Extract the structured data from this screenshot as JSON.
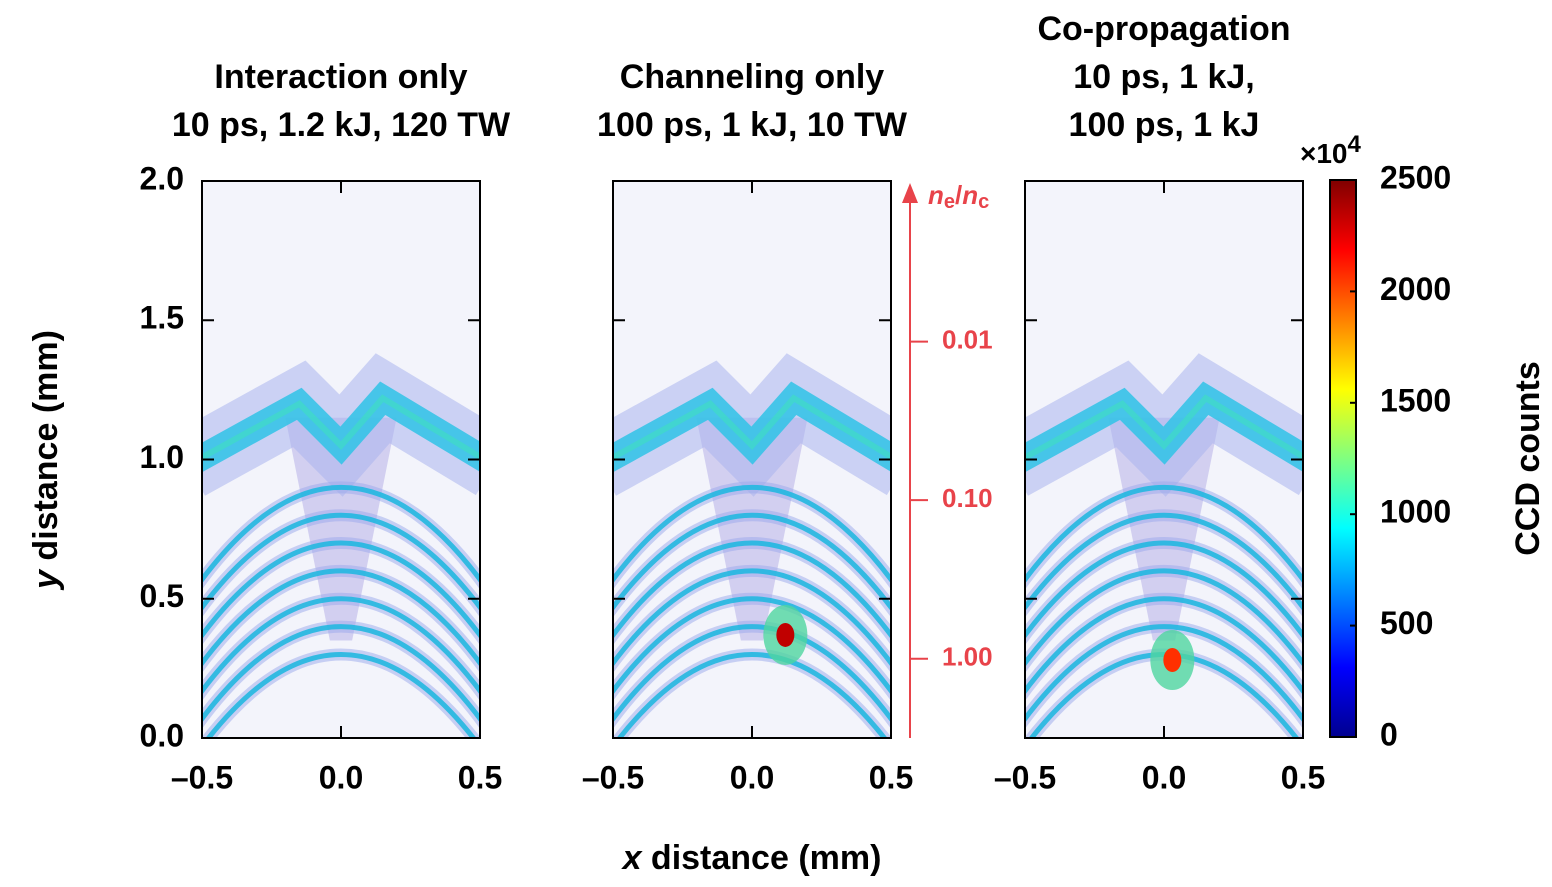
{
  "chart_data": [
    {
      "type": "heatmap",
      "title": [
        "Interaction only",
        "10 ps, 1.2 kJ, 120 TW"
      ],
      "ylabel": [
        "y",
        " distance (mm)"
      ],
      "xlim": [
        -0.5,
        0.5
      ],
      "xticks": [
        {
          "value": -0.5,
          "label": "–0.5"
        },
        {
          "value": 0,
          "label": "0.0"
        },
        0.5
      ],
      "ylim": [
        0,
        2
      ],
      "yticks": [
        {
          "value": 0,
          "label": "0.0"
        },
        0.5,
        {
          "value": 1,
          "label": "1.0"
        },
        1.5,
        {
          "value": 2,
          "label": "2.0"
        }
      ]
    },
    {
      "type": "heatmap",
      "title": [
        "Channeling only",
        "100 ps, 1 kJ, 10 TW"
      ],
      "xlabel": [
        "x",
        " distance (mm)"
      ],
      "xlim": [
        -0.5,
        0.5
      ],
      "xticks": [
        {
          "value": -0.5,
          "label": "–0.5"
        },
        {
          "value": 0,
          "label": "0.0"
        },
        0.5
      ],
      "ylim": [
        0,
        2
      ],
      "yticks": [
        0,
        0.5,
        1,
        1.5,
        2
      ]
    },
    {
      "type": "heatmap",
      "title": [
        "Co-propagation",
        "10 ps, 1 kJ,",
        "100 ps, 1 kJ"
      ],
      "xlim": [
        -0.5,
        0.5
      ],
      "xticks": [
        {
          "value": -0.5,
          "label": "–0.5"
        },
        {
          "value": 0,
          "label": "0.0"
        },
        0.5
      ],
      "ylim": [
        0,
        2
      ],
      "yticks": [
        0,
        0.5,
        1,
        1.5,
        2
      ]
    },
    {
      "type": "colorbar",
      "label": "CCD counts",
      "multiplier": {
        "base": "×10",
        "exponent": "4"
      },
      "ylim": [
        0,
        2500
      ],
      "yticks": [
        0,
        500,
        1000,
        1500,
        2000,
        2500
      ],
      "colors": [
        "#00008f",
        "#0000ff",
        "#0080ff",
        "#00ffff",
        "#80ff80",
        "#ffff00",
        "#ff8000",
        "#ff0000",
        "#800000"
      ]
    },
    {
      "type": "axis",
      "scale": "log",
      "color": "#e8434a",
      "label": {
        "numerator": "n",
        "numerator_sub": "e",
        "separator": "/",
        "denominator": "n",
        "denominator_sub": "c"
      },
      "ylim": [
        3.16,
        0.001
      ],
      "yticks": [
        0.01,
        {
          "value": 0.1,
          "label": "0.10"
        },
        {
          "value": 1,
          "label": "1.00"
        }
      ]
    }
  ]
}
